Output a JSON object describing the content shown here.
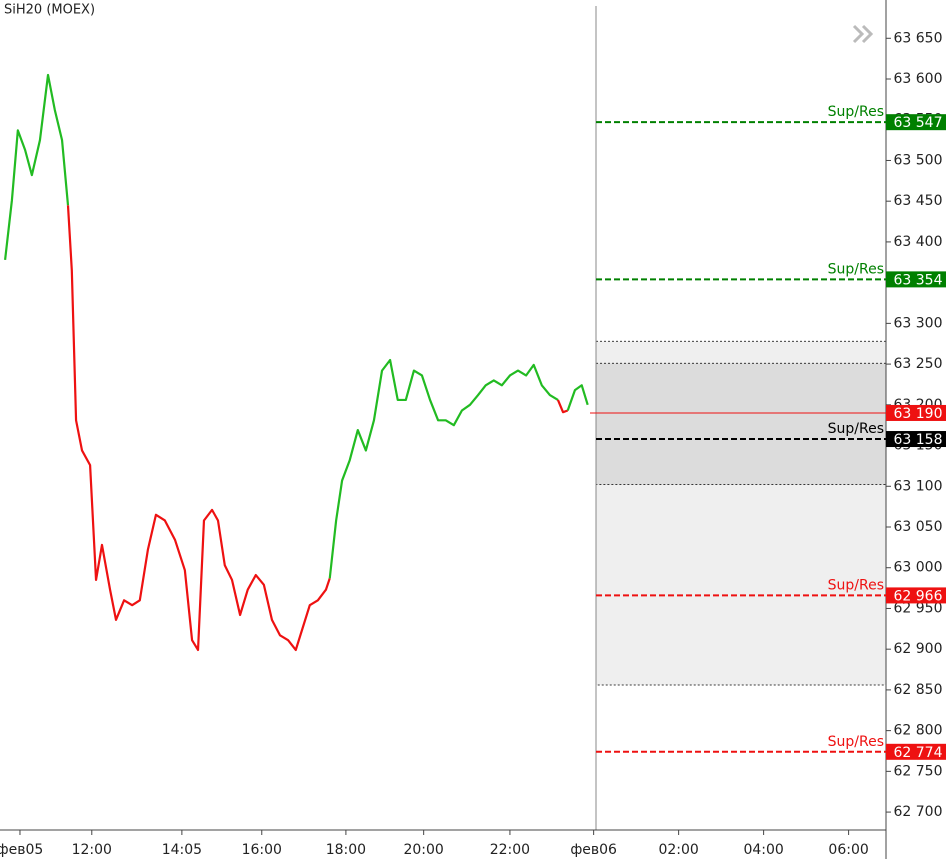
{
  "chart_data": {
    "type": "line",
    "title": "SiH20 (MOEX)",
    "xlim": [
      -0.47,
      20.38
    ],
    "ylim": [
      62678,
      63697
    ],
    "xticks": [
      {
        "value": 0,
        "label": "фев05"
      },
      {
        "value": 1.69,
        "label": "12:00"
      },
      {
        "value": 3.81,
        "label": "14:05"
      },
      {
        "value": 5.69,
        "label": "16:00"
      },
      {
        "value": 7.67,
        "label": "18:00"
      },
      {
        "value": 9.5,
        "label": "20:00"
      },
      {
        "value": 11.53,
        "label": "22:00"
      },
      {
        "value": 13.5,
        "label": "фев06"
      },
      {
        "value": 15.5,
        "label": "02:00"
      },
      {
        "value": 17.5,
        "label": "04:00"
      },
      {
        "value": 19.5,
        "label": "06:00"
      }
    ],
    "yticks": [
      {
        "value": 62700,
        "label": "62 700"
      },
      {
        "value": 62750,
        "label": "62 750"
      },
      {
        "value": 62800,
        "label": "62 800"
      },
      {
        "value": 62850,
        "label": "62 850"
      },
      {
        "value": 62900,
        "label": "62 900"
      },
      {
        "value": 62950,
        "label": "62 950"
      },
      {
        "value": 63000,
        "label": "63 000"
      },
      {
        "value": 63050,
        "label": "63 050"
      },
      {
        "value": 63100,
        "label": "63 100"
      },
      {
        "value": 63150,
        "label": "63 150"
      },
      {
        "value": 63200,
        "label": "63 200"
      },
      {
        "value": 63250,
        "label": "63 250"
      },
      {
        "value": 63300,
        "label": "63 300"
      },
      {
        "value": 63350,
        "label": "63 350"
      },
      {
        "value": 63400,
        "label": "63 400"
      },
      {
        "value": 63450,
        "label": "63 450"
      },
      {
        "value": 63500,
        "label": "63 500"
      },
      {
        "value": 63550,
        "label": "63 550"
      },
      {
        "value": 63600,
        "label": "63 600"
      },
      {
        "value": 63650,
        "label": "63 650"
      }
    ],
    "series": [
      {
        "color": "#22bb22",
        "x": [
          -0.35,
          -0.19,
          -0.05,
          0.12,
          0.28,
          0.47,
          0.66,
          0.82,
          0.99,
          1.13
        ],
        "values": [
          63378,
          63451,
          63537,
          63513,
          63482,
          63525,
          63605,
          63562,
          63525,
          63445
        ]
      },
      {
        "color": "#ee1111",
        "x": [
          1.13,
          1.22,
          1.32,
          1.46,
          1.65,
          1.79,
          1.93,
          2.12,
          2.26,
          2.45,
          2.64,
          2.82,
          3.01,
          3.2,
          3.41,
          3.65,
          3.88,
          4.05,
          4.19,
          4.33,
          4.52,
          4.66,
          4.82,
          4.99,
          5.18,
          5.36,
          5.55,
          5.74,
          5.93,
          6.12,
          6.31,
          6.49,
          6.64,
          6.82,
          7.01,
          7.2,
          7.29
        ],
        "values": [
          63445,
          63365,
          63181,
          63144,
          63126,
          62985,
          63028,
          62973,
          62936,
          62960,
          62954,
          62960,
          63022,
          63065,
          63058,
          63034,
          62997,
          62911,
          62899,
          63058,
          63071,
          63058,
          63003,
          62985,
          62942,
          62973,
          62991,
          62979,
          62936,
          62917,
          62911,
          62899,
          62924,
          62954,
          62960,
          62973,
          62987
        ]
      },
      {
        "color": "#22bb22",
        "x": [
          7.29,
          7.44,
          7.58,
          7.76,
          7.95,
          8.14,
          8.33,
          8.52,
          8.71,
          8.89,
          9.08,
          9.27,
          9.46,
          9.65,
          9.84,
          10.02,
          10.21,
          10.4,
          10.59,
          10.78,
          10.96,
          11.15,
          11.34,
          11.53,
          11.72,
          11.91,
          12.09,
          12.28,
          12.47,
          12.66
        ],
        "values": [
          62987,
          63058,
          63107,
          63132,
          63169,
          63144,
          63181,
          63242,
          63255,
          63206,
          63206,
          63242,
          63236,
          63206,
          63181,
          63181,
          63175,
          63193,
          63200,
          63212,
          63224,
          63230,
          63224,
          63236,
          63242,
          63236,
          63249,
          63224,
          63212,
          63206
        ]
      },
      {
        "color": "#ee1111",
        "x": [
          12.66,
          12.78,
          12.89
        ],
        "values": [
          63206,
          63191,
          63193
        ]
      },
      {
        "color": "#22bb22",
        "x": [
          12.89,
          13.06,
          13.22,
          13.36
        ],
        "values": [
          63193,
          63218,
          63224,
          63200
        ]
      }
    ],
    "zones": [
      {
        "from": 63278,
        "to": 62856,
        "color": "#efefef"
      },
      {
        "from": 63251,
        "to": 63102,
        "color": "#dcdcdc"
      }
    ],
    "levels": [
      {
        "value": 63547,
        "label": "Sup/Res",
        "price_label": "63 547",
        "color": "#008000",
        "dashed": true
      },
      {
        "value": 63354,
        "label": "Sup/Res",
        "price_label": "63 354",
        "color": "#008000",
        "dashed": true
      },
      {
        "value": 63158,
        "label": "Sup/Res",
        "price_label": "63 158",
        "color": "#000000",
        "dashed": true
      },
      {
        "value": 62966,
        "label": "Sup/Res",
        "price_label": "62 966",
        "color": "#ee1111",
        "dashed": true
      },
      {
        "value": 62774,
        "label": "Sup/Res",
        "price_label": "62 774",
        "color": "#ee1111",
        "dashed": true
      }
    ],
    "last_price": {
      "value": 63190,
      "price_label": "63 190",
      "color": "#ee1111"
    }
  }
}
